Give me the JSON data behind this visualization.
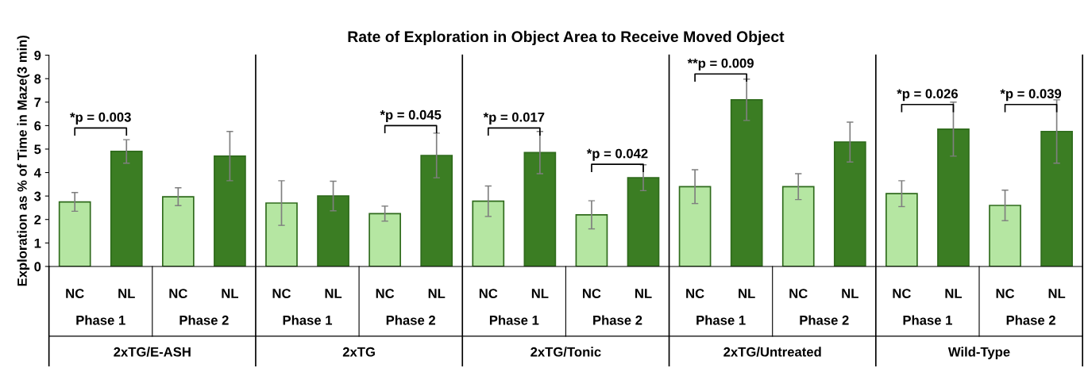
{
  "chart_data": {
    "type": "bar",
    "title": "Rate of Exploration in Object Area to Receive Moved Object",
    "ylabel": "Exploration as % of Time in Maze(3 min)",
    "categories": [
      "NC",
      "NL",
      "NC",
      "NL",
      "NC",
      "NL",
      "NC",
      "NL",
      "NC",
      "NL",
      "NC",
      "NL",
      "NC",
      "NL",
      "NC",
      "NL",
      "NC",
      "NL",
      "NC",
      "NL"
    ],
    "values": [
      2.75,
      4.9,
      2.97,
      4.7,
      2.7,
      3.0,
      2.25,
      4.73,
      2.78,
      4.85,
      2.2,
      3.78,
      3.4,
      7.1,
      3.4,
      5.3,
      3.1,
      5.85,
      2.6,
      5.75
    ],
    "errors": [
      0.4,
      0.5,
      0.38,
      1.05,
      0.95,
      0.63,
      0.32,
      0.95,
      0.65,
      0.9,
      0.6,
      0.55,
      0.72,
      0.88,
      0.55,
      0.85,
      0.55,
      1.15,
      0.65,
      1.35
    ],
    "colors": [
      "#b5e6a2",
      "#3b7d23",
      "#b5e6a2",
      "#3b7d23",
      "#b5e6a2",
      "#3b7d23",
      "#b5e6a2",
      "#3b7d23",
      "#b5e6a2",
      "#3b7d23",
      "#b5e6a2",
      "#3b7d23",
      "#b5e6a2",
      "#3b7d23",
      "#b5e6a2",
      "#3b7d23",
      "#b5e6a2",
      "#3b7d23",
      "#b5e6a2",
      "#3b7d23"
    ],
    "ylim": [
      0,
      9
    ],
    "yticks": [
      0,
      1,
      2,
      3,
      4,
      5,
      6,
      7,
      8,
      9
    ],
    "grid": false,
    "legend": false,
    "annotations": [
      "*p = 0.003",
      "*p = 0.045",
      "*p = 0.017",
      "*p = 0.042",
      "**p = 0.009",
      "*p = 0.026",
      "*p = 0.039",
      "Phase 1",
      "Phase 2",
      "Phase 1",
      "Phase 2",
      "Phase 1",
      "Phase 2",
      "Phase 1",
      "Phase 2",
      "Phase 1",
      "Phase 2",
      "2xTG/E-ASH",
      "2xTG",
      "2xTG/Tonic",
      "2xTG/Untreated",
      "Wild-Type"
    ]
  }
}
